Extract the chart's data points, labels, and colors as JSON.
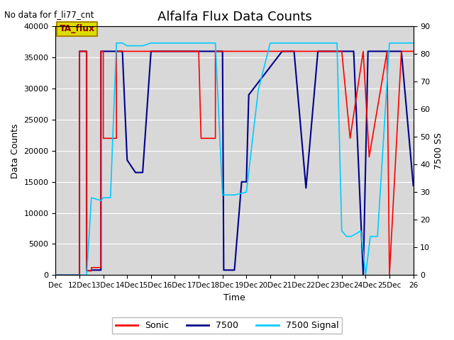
{
  "title": "Alfalfa Flux Data Counts",
  "title_fontsize": 13,
  "top_left_text": "No data for f_li77_cnt",
  "xlabel": "Time",
  "ylabel_left": "Data Counts",
  "ylabel_right": "7500 SS",
  "ylim_left": [
    0,
    40000
  ],
  "ylim_right": [
    0,
    90
  ],
  "plot_bg_color": "#d8d8d8",
  "legend_entries": [
    "Sonic",
    "7500",
    "7500 Signal"
  ],
  "legend_colors": [
    "#ff0000",
    "#00008b",
    "#00ccff"
  ],
  "annotation_text": "TA_flux",
  "annotation_bg": "#dddd00",
  "annotation_edge": "#aa8800",
  "annotation_text_color": "#880000",
  "xtick_positions": [
    11,
    12,
    13,
    14,
    15,
    16,
    17,
    18,
    19,
    20,
    21,
    22,
    23,
    24,
    25,
    26
  ],
  "xtick_labels": [
    "Dec",
    "12Dec",
    "13Dec",
    "14Dec",
    "15Dec",
    "16Dec",
    "17Dec",
    "18Dec",
    "19Dec",
    "20Dec",
    "21Dec",
    "22Dec",
    "23Dec",
    "24Dec",
    "25Dec",
    "26"
  ],
  "sonic_x": [
    11,
    12.0,
    12.0,
    12.3,
    12.3,
    12.5,
    12.5,
    12.9,
    12.9,
    13.0,
    13.0,
    13.55,
    13.55,
    14.4,
    14.4,
    16.0,
    16.0,
    16.5,
    16.5,
    17.0,
    17.0,
    17.1,
    17.1,
    17.7,
    17.7,
    18.5,
    18.5,
    22.5,
    22.5,
    23.0,
    23.0,
    23.35,
    23.35,
    23.9,
    23.9,
    24.15,
    24.15,
    24.9,
    24.9,
    25.0,
    25.0,
    25.5,
    25.5,
    26.0
  ],
  "sonic_y": [
    0,
    0,
    36000,
    36000,
    700,
    700,
    1200,
    1200,
    36000,
    36000,
    22000,
    22000,
    36000,
    36000,
    36000,
    36000,
    36000,
    36000,
    36000,
    36000,
    36000,
    22000,
    22000,
    22000,
    36000,
    36000,
    36000,
    36000,
    36000,
    36000,
    36000,
    22000,
    22000,
    36000,
    36000,
    19000,
    19000,
    36000,
    36000,
    0,
    0,
    36000,
    36000,
    36000
  ],
  "s7500_x": [
    11,
    12.0,
    12.0,
    12.3,
    12.3,
    12.5,
    12.5,
    12.9,
    12.9,
    13.0,
    13.0,
    13.55,
    13.55,
    13.8,
    13.8,
    14.0,
    14.0,
    14.35,
    14.35,
    14.65,
    14.65,
    15.0,
    15.0,
    15.35,
    15.35,
    15.7,
    15.7,
    16.0,
    16.0,
    16.5,
    16.5,
    17.0,
    17.0,
    17.5,
    17.5,
    17.7,
    17.7,
    18.0,
    18.0,
    18.05,
    18.05,
    18.5,
    18.5,
    18.8,
    18.8,
    19.0,
    19.0,
    19.1,
    19.1,
    20.5,
    20.5,
    21.0,
    21.0,
    21.5,
    21.5,
    22.0,
    22.0,
    22.5,
    22.5,
    23.0,
    23.0,
    23.5,
    23.5,
    23.9,
    23.9,
    24.1,
    24.1,
    24.5,
    24.5,
    25.0,
    25.0,
    25.5,
    25.5,
    26.0
  ],
  "s7500_y": [
    0,
    0,
    36000,
    36000,
    700,
    700,
    800,
    800,
    36000,
    36000,
    36000,
    36000,
    36000,
    36000,
    36000,
    18500,
    18500,
    16500,
    16500,
    16500,
    16500,
    36000,
    36000,
    36000,
    36000,
    36000,
    36000,
    36000,
    36000,
    36000,
    36000,
    36000,
    36000,
    36000,
    36000,
    36000,
    36000,
    36000,
    36000,
    800,
    800,
    800,
    800,
    15000,
    15000,
    15000,
    15000,
    29000,
    29000,
    36000,
    36000,
    36000,
    36000,
    14000,
    14000,
    36000,
    36000,
    36000,
    36000,
    36000,
    36000,
    36000,
    36000,
    0,
    0,
    36000,
    36000,
    36000,
    36000,
    36000,
    36000,
    36000,
    36000,
    14400
  ],
  "signal_x": [
    11,
    12.0,
    12.3,
    12.5,
    12.9,
    13.0,
    13.3,
    13.55,
    13.8,
    14.0,
    14.35,
    14.65,
    15.0,
    15.35,
    15.7,
    16.0,
    16.3,
    16.5,
    17.0,
    17.5,
    17.7,
    18.0,
    18.3,
    18.5,
    19.0,
    19.5,
    20.0,
    20.5,
    21.0,
    21.5,
    21.6,
    22.0,
    22.5,
    22.8,
    23.0,
    23.2,
    23.4,
    23.8,
    24.0,
    24.2,
    24.5,
    25.0,
    25.5,
    26.0
  ],
  "signal_y": [
    0,
    0,
    0,
    28,
    27,
    28,
    28,
    84,
    84,
    83,
    83,
    83,
    84,
    84,
    84,
    84,
    84,
    84,
    84,
    84,
    84,
    29,
    29,
    29,
    30,
    67,
    84,
    84,
    84,
    84,
    84,
    84,
    84,
    84,
    16,
    14,
    14,
    16,
    0,
    14,
    14,
    84,
    84,
    84
  ]
}
